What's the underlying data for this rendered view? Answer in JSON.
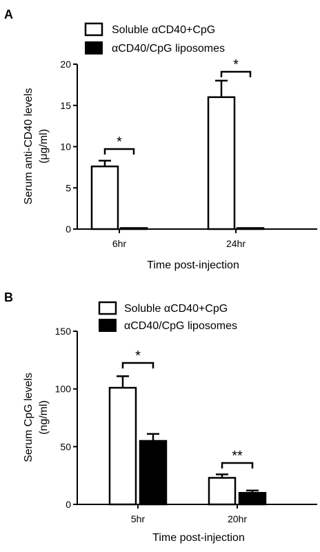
{
  "chart_data": [
    {
      "panel_label": "A",
      "type": "bar",
      "categories": [
        "6hr",
        "24hr"
      ],
      "series": [
        {
          "name": "Soluble αCD40+CpG",
          "values": [
            7.6,
            16.0
          ],
          "errors": [
            0.7,
            2.0
          ],
          "color": "#ffffff"
        },
        {
          "name": "αCD40/CpG liposomes",
          "values": [
            0.1,
            0.05
          ],
          "errors": [
            0.0,
            0.0
          ],
          "color": "#000000"
        }
      ],
      "xlabel": "Time post-injection",
      "ylabel_lines": [
        "Serum anti-CD40 levels",
        "(μg/ml)"
      ],
      "ylim": [
        0,
        20
      ],
      "yticks": [
        0,
        5,
        10,
        15,
        20
      ],
      "significance": [
        "*",
        "*"
      ],
      "legend_position": "top"
    },
    {
      "panel_label": "B",
      "type": "bar",
      "categories": [
        "5hr",
        "20hr"
      ],
      "series": [
        {
          "name": "Soluble αCD40+CpG",
          "values": [
            101,
            23
          ],
          "errors": [
            10,
            3
          ],
          "color": "#ffffff"
        },
        {
          "name": "αCD40/CpG liposomes",
          "values": [
            55,
            10
          ],
          "errors": [
            6,
            2
          ],
          "color": "#000000"
        }
      ],
      "xlabel": "Time post-injection",
      "ylabel_lines": [
        "Serum CpG levels",
        "(ng/ml)"
      ],
      "ylim": [
        0,
        150
      ],
      "yticks": [
        0,
        50,
        100,
        150
      ],
      "significance": [
        "*",
        "**"
      ],
      "legend_position": "top"
    }
  ]
}
